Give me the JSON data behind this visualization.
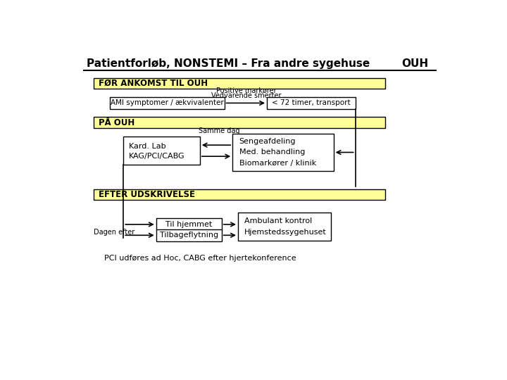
{
  "title": "Patientforløb, NONSTEMI – Fra andre sygehuse",
  "title_right": "OUH",
  "bg_color": "#ffffff",
  "yellow_color": "#ffff99",
  "box_color": "#ffffff",
  "box_edge": "#000000",
  "footer": "PCI udføres ad Hoc, CABG efter hjertekonference",
  "section1_label": "FØR ANKOMST TIL OUH",
  "section2_label": "PÅ OUH",
  "section3_label": "EFTER UDSKRIVELSE",
  "positive_label": "Positive markører",
  "vedvarende_label": "Vedvarende smerter",
  "ami_label": "AMI symptomer / ækvivalenter",
  "timer_label": "< 72 timer, transport",
  "kard_label": "Kard. Lab",
  "kag_label": "KAG/PCI/CABG",
  "same_dag_label": "Samme dag",
  "senge_label": "Sengeafdeling",
  "med_label": "Med. behandling",
  "bio_label": "Biomarkører / klinik",
  "dagen_label": "Dagen efter",
  "hjem_label": "Til hjemmet",
  "tilbage_label": "Tilbageflytning",
  "ambulant_label": "Ambulant kontrol",
  "hjemsted_label": "Hjemstedssygehuset"
}
